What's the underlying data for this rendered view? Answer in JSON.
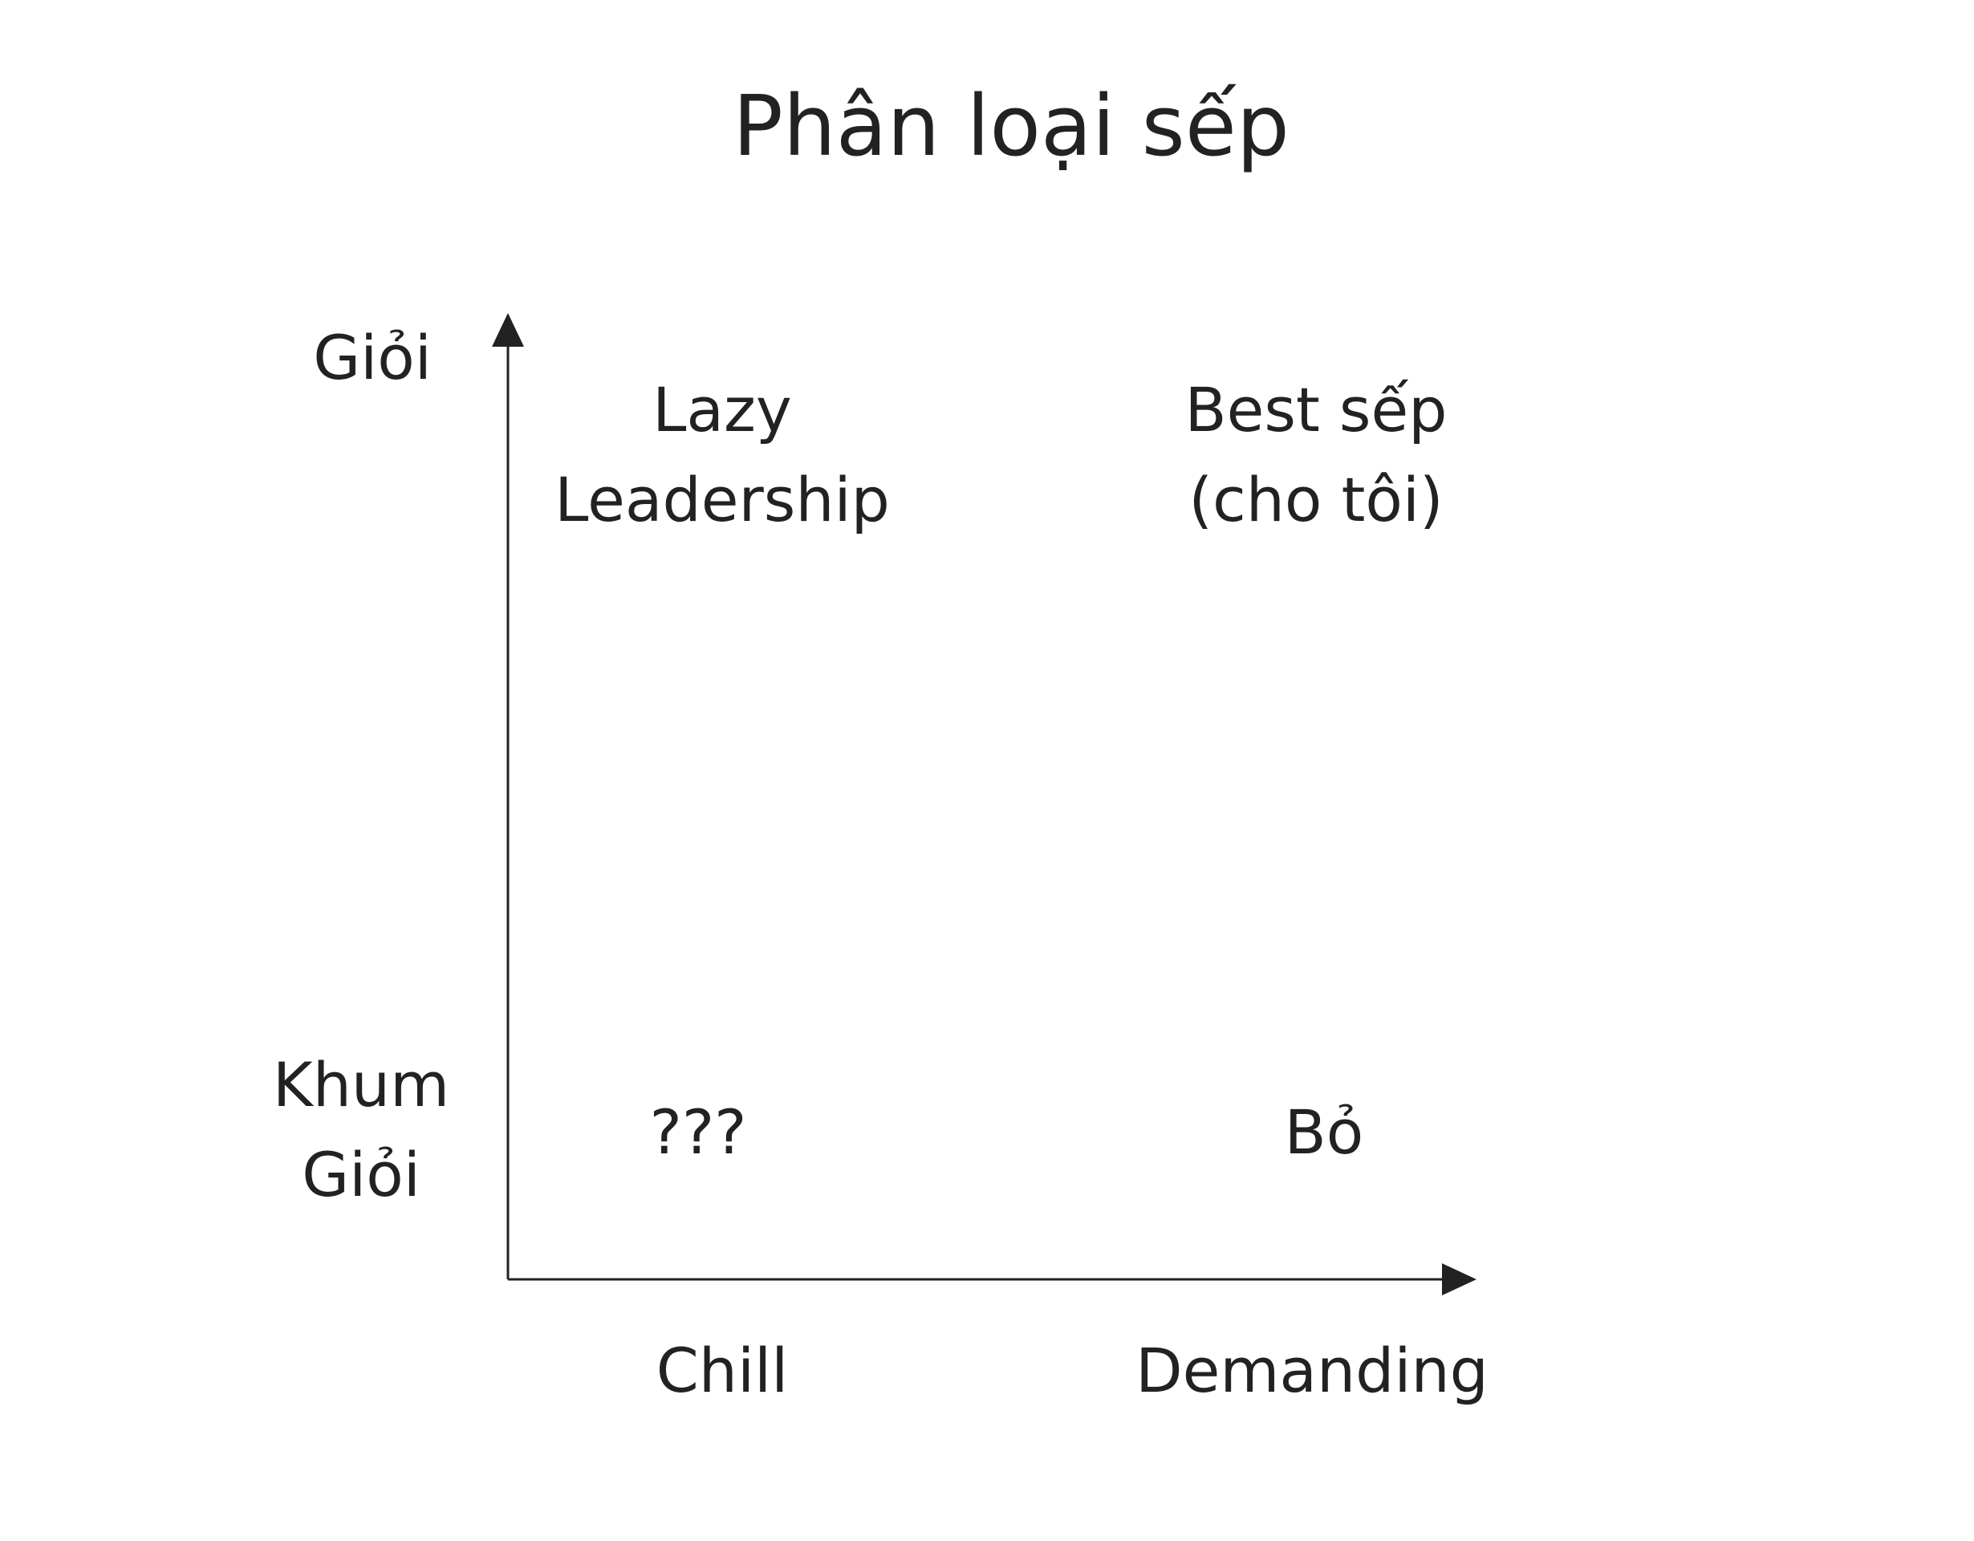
{
  "title": "Phân loại sếp",
  "axes": {
    "y": {
      "top_label": "Giỏi",
      "bottom_label_lines": [
        "Khum",
        "Giỏi"
      ]
    },
    "x": {
      "left_label": "Chill",
      "right_label": "Demanding"
    }
  },
  "quadrants": {
    "top_left_lines": [
      "Lazy",
      "Leadership"
    ],
    "top_right_lines": [
      "Best sếp",
      "(cho tôi)"
    ],
    "bottom_left": "???",
    "bottom_right": "Bỏ"
  },
  "colors": {
    "text": "#222222",
    "axis": "#222222",
    "background": "#ffffff"
  }
}
